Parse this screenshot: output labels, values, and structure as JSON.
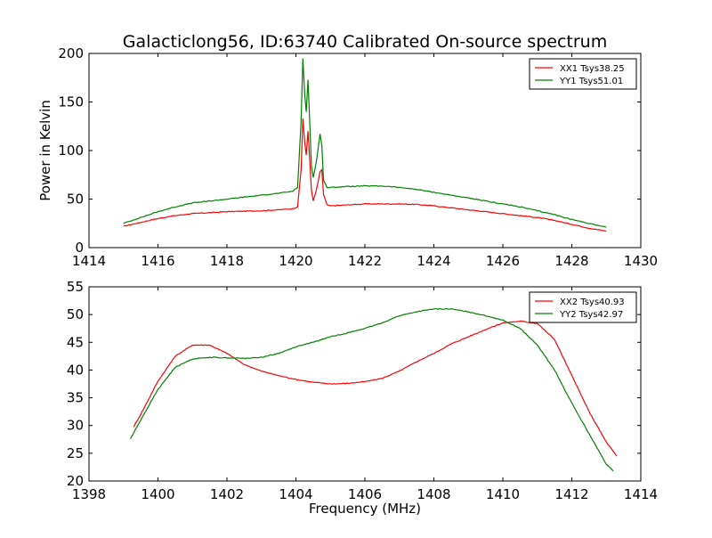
{
  "chart_data": [
    {
      "type": "line",
      "title": "Galacticlong56, ID:63740 Calibrated On-source spectrum",
      "xlabel": "",
      "ylabel": "Power in Kelvin",
      "xlim": [
        1414,
        1430
      ],
      "ylim": [
        0,
        200
      ],
      "xticks": [
        1414,
        1416,
        1418,
        1420,
        1422,
        1424,
        1426,
        1428,
        1430
      ],
      "yticks": [
        0,
        50,
        100,
        150,
        200
      ],
      "grid": false,
      "legend_position": "top-right",
      "series": [
        {
          "name": "XX1 Tsys38.25",
          "color": "#ff0000",
          "x": [
            1415.0,
            1415.5,
            1416.0,
            1416.5,
            1417.0,
            1417.5,
            1418.0,
            1418.5,
            1419.0,
            1419.5,
            1419.9,
            1420.05,
            1420.15,
            1420.2,
            1420.25,
            1420.3,
            1420.35,
            1420.4,
            1420.45,
            1420.5,
            1420.6,
            1420.7,
            1420.75,
            1420.8,
            1420.9,
            1421.0,
            1421.5,
            1422.0,
            1422.5,
            1423.0,
            1423.5,
            1424.0,
            1424.5,
            1425.0,
            1425.5,
            1426.0,
            1426.5,
            1427.0,
            1427.5,
            1428.0,
            1428.5,
            1429.0
          ],
          "y": [
            22,
            26,
            30,
            33,
            35,
            36,
            37,
            37.5,
            38,
            39,
            40,
            42,
            80,
            133,
            110,
            95,
            120,
            90,
            60,
            48,
            60,
            78,
            80,
            55,
            44,
            43,
            44,
            45,
            45,
            45,
            44.5,
            43,
            41,
            39,
            37,
            35,
            33,
            31,
            28,
            24,
            20,
            17
          ]
        },
        {
          "name": "YY1 Tsys51.01",
          "color": "#008000",
          "x": [
            1415.0,
            1415.5,
            1416.0,
            1416.5,
            1417.0,
            1417.5,
            1418.0,
            1418.5,
            1419.0,
            1419.5,
            1419.9,
            1420.05,
            1420.15,
            1420.2,
            1420.25,
            1420.3,
            1420.35,
            1420.4,
            1420.45,
            1420.5,
            1420.6,
            1420.7,
            1420.75,
            1420.8,
            1420.9,
            1421.0,
            1421.5,
            1422.0,
            1422.5,
            1423.0,
            1423.5,
            1424.0,
            1424.5,
            1425.0,
            1425.5,
            1426.0,
            1426.5,
            1427.0,
            1427.5,
            1428.0,
            1428.5,
            1429.0
          ],
          "y": [
            25,
            31,
            37,
            42,
            46,
            48,
            50,
            52,
            54,
            56,
            58,
            62,
            130,
            195,
            160,
            140,
            173,
            130,
            85,
            72,
            90,
            117,
            105,
            70,
            62,
            62,
            63,
            63.5,
            63.5,
            62,
            60,
            57,
            54,
            51,
            48,
            45,
            42,
            38,
            34,
            29,
            25,
            21
          ]
        }
      ]
    },
    {
      "type": "line",
      "title": "",
      "xlabel": "Frequency (MHz)",
      "ylabel": "",
      "xlim": [
        1398,
        1414
      ],
      "ylim": [
        20,
        55
      ],
      "xticks": [
        1398,
        1400,
        1402,
        1404,
        1406,
        1408,
        1410,
        1412,
        1414
      ],
      "yticks": [
        20,
        25,
        30,
        35,
        40,
        45,
        50,
        55
      ],
      "grid": false,
      "legend_position": "top-right",
      "series": [
        {
          "name": "XX2 Tsys40.93",
          "color": "#ff0000",
          "x": [
            1399.3,
            1399.5,
            1400.0,
            1400.5,
            1401.0,
            1401.5,
            1402.0,
            1402.5,
            1403.0,
            1403.5,
            1404.0,
            1404.5,
            1405.0,
            1405.5,
            1406.0,
            1406.5,
            1407.0,
            1407.5,
            1408.0,
            1408.5,
            1409.0,
            1409.5,
            1410.0,
            1410.5,
            1411.0,
            1411.5,
            1412.0,
            1412.5,
            1413.0,
            1413.3
          ],
          "y": [
            29.8,
            32,
            38,
            42.5,
            44.5,
            44.5,
            43,
            41,
            39.8,
            39,
            38.3,
            37.8,
            37.5,
            37.6,
            37.9,
            38.5,
            39.8,
            41.5,
            43,
            44.7,
            46,
            47.3,
            48.5,
            48.8,
            48.4,
            45.5,
            39,
            32.5,
            27,
            24.5
          ]
        },
        {
          "name": "YY2 Tsys42.97",
          "color": "#008000",
          "x": [
            1399.2,
            1399.5,
            1400.0,
            1400.5,
            1401.0,
            1401.5,
            1402.0,
            1402.5,
            1403.0,
            1403.5,
            1404.0,
            1404.5,
            1405.0,
            1405.5,
            1406.0,
            1406.5,
            1407.0,
            1407.5,
            1408.0,
            1408.5,
            1409.0,
            1409.5,
            1410.0,
            1410.5,
            1411.0,
            1411.5,
            1412.0,
            1412.5,
            1413.0,
            1413.2
          ],
          "y": [
            27.6,
            31,
            36.5,
            40.5,
            42,
            42.3,
            42.2,
            42.1,
            42.3,
            43,
            44.2,
            45,
            46,
            46.7,
            47.5,
            48.5,
            49.8,
            50.5,
            51,
            51,
            50.5,
            49.8,
            49,
            47.5,
            44.5,
            40,
            34,
            28.5,
            23,
            21.8
          ]
        }
      ]
    }
  ]
}
